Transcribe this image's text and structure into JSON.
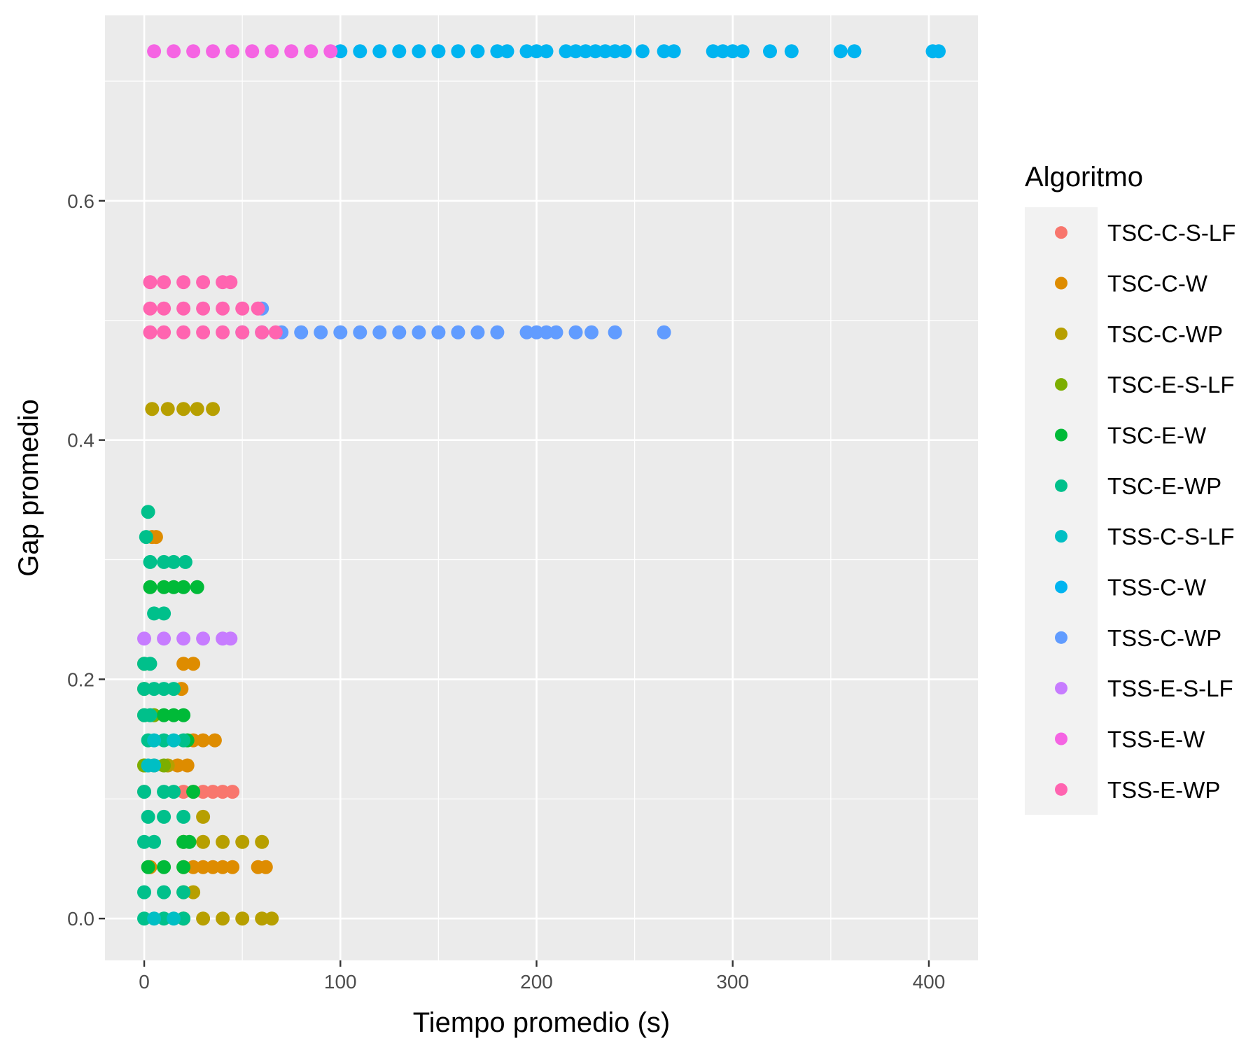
{
  "chart_data": {
    "type": "scatter",
    "xlabel": "Tiempo promedio (s)",
    "ylabel": "Gap promedio",
    "xlim": [
      -20,
      425
    ],
    "ylim": [
      -0.035,
      0.755
    ],
    "x_ticks": [
      0,
      100,
      200,
      300,
      400
    ],
    "x_tick_labels": [
      "0",
      "100",
      "200",
      "300",
      "400"
    ],
    "y_ticks": [
      0.0,
      0.2,
      0.4,
      0.6
    ],
    "y_tick_labels": [
      "0.0",
      "0.2",
      "0.4",
      "0.6"
    ],
    "grid": true,
    "legend": {
      "title": "Algoritmo",
      "position": "right"
    },
    "series": [
      {
        "name": "TSC-C-S-LF",
        "color": "#F8766D",
        "points": [
          [
            0,
            0.106
          ],
          [
            20,
            0.106
          ],
          [
            25,
            0.106
          ],
          [
            30,
            0.106
          ],
          [
            35,
            0.106
          ],
          [
            40,
            0.106
          ],
          [
            45,
            0.106
          ]
        ]
      },
      {
        "name": "TSC-C-W",
        "color": "#DE8C00",
        "points": [
          [
            0,
            0.213
          ],
          [
            20,
            0.213
          ],
          [
            25,
            0.213
          ],
          [
            0,
            0.192
          ],
          [
            19,
            0.192
          ],
          [
            25,
            0.149
          ],
          [
            30,
            0.149
          ],
          [
            36,
            0.149
          ],
          [
            0,
            0.128
          ],
          [
            17,
            0.128
          ],
          [
            22,
            0.128
          ],
          [
            3,
            0.043
          ],
          [
            20,
            0.043
          ],
          [
            25,
            0.043
          ],
          [
            30,
            0.043
          ],
          [
            35,
            0.043
          ],
          [
            40,
            0.043
          ],
          [
            45,
            0.043
          ],
          [
            58,
            0.043
          ],
          [
            62,
            0.043
          ],
          [
            4,
            0.319
          ],
          [
            6,
            0.319
          ]
        ]
      },
      {
        "name": "TSC-C-WP",
        "color": "#B79F00",
        "points": [
          [
            4,
            0.426
          ],
          [
            12,
            0.426
          ],
          [
            20,
            0.426
          ],
          [
            27,
            0.426
          ],
          [
            35,
            0.426
          ],
          [
            5,
            0.128
          ],
          [
            12,
            0.128
          ],
          [
            30,
            0.085
          ],
          [
            20,
            0.064
          ],
          [
            30,
            0.064
          ],
          [
            40,
            0.064
          ],
          [
            50,
            0.064
          ],
          [
            60,
            0.064
          ],
          [
            20,
            0.022
          ],
          [
            25,
            0.022
          ],
          [
            20,
            0.0
          ],
          [
            30,
            0.0
          ],
          [
            40,
            0.0
          ],
          [
            50,
            0.0
          ],
          [
            60,
            0.0
          ],
          [
            65,
            0.0
          ]
        ]
      },
      {
        "name": "TSC-E-S-LF",
        "color": "#7CAE00",
        "points": [
          [
            0,
            0.17
          ],
          [
            5,
            0.17
          ],
          [
            0,
            0.128
          ],
          [
            10,
            0.128
          ]
        ]
      },
      {
        "name": "TSC-E-W",
        "color": "#00BA38",
        "points": [
          [
            3,
            0.277
          ],
          [
            10,
            0.277
          ],
          [
            15,
            0.277
          ],
          [
            20,
            0.277
          ],
          [
            27,
            0.277
          ],
          [
            10,
            0.17
          ],
          [
            15,
            0.17
          ],
          [
            20,
            0.17
          ],
          [
            22,
            0.149
          ],
          [
            25,
            0.106
          ],
          [
            20,
            0.064
          ],
          [
            23,
            0.064
          ],
          [
            2,
            0.043
          ],
          [
            10,
            0.043
          ],
          [
            20,
            0.043
          ]
        ]
      },
      {
        "name": "TSC-E-WP",
        "color": "#00C08B",
        "points": [
          [
            2,
            0.34
          ],
          [
            1,
            0.319
          ],
          [
            3,
            0.298
          ],
          [
            10,
            0.298
          ],
          [
            15,
            0.298
          ],
          [
            21,
            0.298
          ],
          [
            5,
            0.255
          ],
          [
            10,
            0.255
          ],
          [
            0,
            0.213
          ],
          [
            3,
            0.213
          ],
          [
            0,
            0.192
          ],
          [
            5,
            0.192
          ],
          [
            10,
            0.192
          ],
          [
            15,
            0.192
          ],
          [
            0,
            0.17
          ],
          [
            3,
            0.17
          ],
          [
            2,
            0.149
          ],
          [
            10,
            0.149
          ],
          [
            20,
            0.149
          ],
          [
            0,
            0.106
          ],
          [
            10,
            0.106
          ],
          [
            15,
            0.106
          ],
          [
            2,
            0.085
          ],
          [
            10,
            0.085
          ],
          [
            20,
            0.085
          ],
          [
            0,
            0.064
          ],
          [
            5,
            0.064
          ],
          [
            0,
            0.022
          ],
          [
            10,
            0.022
          ],
          [
            20,
            0.022
          ],
          [
            0,
            0.0
          ],
          [
            10,
            0.0
          ],
          [
            20,
            0.0
          ]
        ]
      },
      {
        "name": "TSS-C-S-LF",
        "color": "#00BFC4",
        "points": [
          [
            2,
            0.128
          ],
          [
            5,
            0.128
          ],
          [
            5,
            0.149
          ],
          [
            15,
            0.149
          ],
          [
            5,
            0.0
          ],
          [
            15,
            0.0
          ]
        ]
      },
      {
        "name": "TSS-C-W",
        "color": "#00B4F0",
        "points": [
          [
            100,
            0.725
          ],
          [
            110,
            0.725
          ],
          [
            120,
            0.725
          ],
          [
            130,
            0.725
          ],
          [
            140,
            0.725
          ],
          [
            150,
            0.725
          ],
          [
            160,
            0.725
          ],
          [
            170,
            0.725
          ],
          [
            180,
            0.725
          ],
          [
            185,
            0.725
          ],
          [
            195,
            0.725
          ],
          [
            200,
            0.725
          ],
          [
            205,
            0.725
          ],
          [
            215,
            0.725
          ],
          [
            220,
            0.725
          ],
          [
            225,
            0.725
          ],
          [
            230,
            0.725
          ],
          [
            235,
            0.725
          ],
          [
            240,
            0.725
          ],
          [
            245,
            0.725
          ],
          [
            254,
            0.725
          ],
          [
            265,
            0.725
          ],
          [
            270,
            0.725
          ],
          [
            290,
            0.725
          ],
          [
            295,
            0.725
          ],
          [
            300,
            0.725
          ],
          [
            305,
            0.725
          ],
          [
            319,
            0.725
          ],
          [
            330,
            0.725
          ],
          [
            355,
            0.725
          ],
          [
            362,
            0.725
          ],
          [
            402,
            0.725
          ],
          [
            405,
            0.725
          ]
        ]
      },
      {
        "name": "TSS-C-WP",
        "color": "#619CFF",
        "points": [
          [
            60,
            0.51
          ],
          [
            50,
            0.49
          ],
          [
            60,
            0.49
          ],
          [
            70,
            0.49
          ],
          [
            80,
            0.49
          ],
          [
            90,
            0.49
          ],
          [
            100,
            0.49
          ],
          [
            110,
            0.49
          ],
          [
            120,
            0.49
          ],
          [
            130,
            0.49
          ],
          [
            140,
            0.49
          ],
          [
            150,
            0.49
          ],
          [
            160,
            0.49
          ],
          [
            170,
            0.49
          ],
          [
            180,
            0.49
          ],
          [
            195,
            0.49
          ],
          [
            200,
            0.49
          ],
          [
            205,
            0.49
          ],
          [
            210,
            0.49
          ],
          [
            220,
            0.49
          ],
          [
            228,
            0.49
          ],
          [
            240,
            0.49
          ],
          [
            265,
            0.49
          ]
        ]
      },
      {
        "name": "TSS-E-S-LF",
        "color": "#C77CFF",
        "points": [
          [
            0,
            0.234
          ],
          [
            10,
            0.234
          ],
          [
            20,
            0.234
          ],
          [
            30,
            0.234
          ],
          [
            40,
            0.234
          ],
          [
            44,
            0.234
          ]
        ]
      },
      {
        "name": "TSS-E-W",
        "color": "#F564E3",
        "points": [
          [
            5,
            0.725
          ],
          [
            15,
            0.725
          ],
          [
            25,
            0.725
          ],
          [
            35,
            0.725
          ],
          [
            45,
            0.725
          ],
          [
            55,
            0.725
          ],
          [
            65,
            0.725
          ],
          [
            75,
            0.725
          ],
          [
            85,
            0.725
          ],
          [
            95,
            0.725
          ]
        ]
      },
      {
        "name": "TSS-E-WP",
        "color": "#FF64B0",
        "points": [
          [
            3,
            0.532
          ],
          [
            10,
            0.532
          ],
          [
            20,
            0.532
          ],
          [
            30,
            0.532
          ],
          [
            40,
            0.532
          ],
          [
            44,
            0.532
          ],
          [
            3,
            0.51
          ],
          [
            10,
            0.51
          ],
          [
            20,
            0.51
          ],
          [
            30,
            0.51
          ],
          [
            40,
            0.51
          ],
          [
            50,
            0.51
          ],
          [
            58,
            0.51
          ],
          [
            3,
            0.49
          ],
          [
            10,
            0.49
          ],
          [
            20,
            0.49
          ],
          [
            30,
            0.49
          ],
          [
            40,
            0.49
          ],
          [
            50,
            0.49
          ],
          [
            60,
            0.49
          ],
          [
            67,
            0.49
          ]
        ]
      }
    ]
  }
}
